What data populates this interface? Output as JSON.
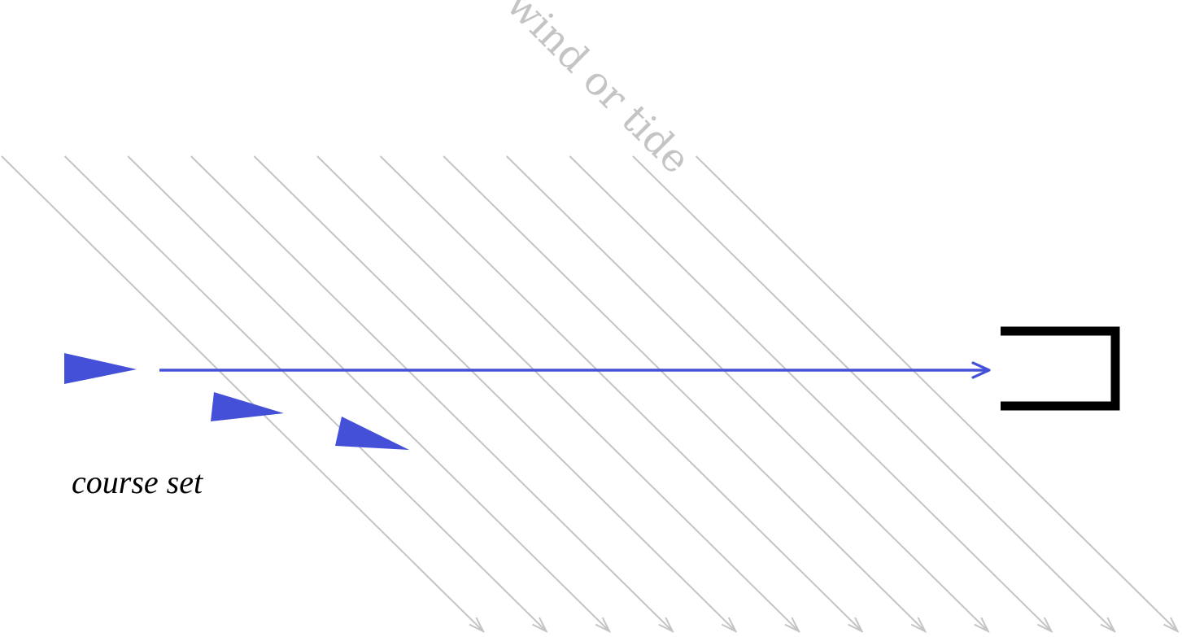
{
  "labels": {
    "wind": "wind or tide",
    "course": "course set"
  },
  "colors": {
    "flow_lines": "#c4c4c4",
    "boat": "#4450d8",
    "course_arrow": "#4450d8",
    "dock": "#000000",
    "course_text": "#000000"
  },
  "flow_lines": {
    "count": 12,
    "direction": "down-right",
    "arrowheads": true
  },
  "boats": {
    "count": 3,
    "shape": "wedge"
  },
  "course_arrow": {
    "direction": "right",
    "target": "dock"
  },
  "dock": {
    "shape": "bracket-open-left"
  }
}
